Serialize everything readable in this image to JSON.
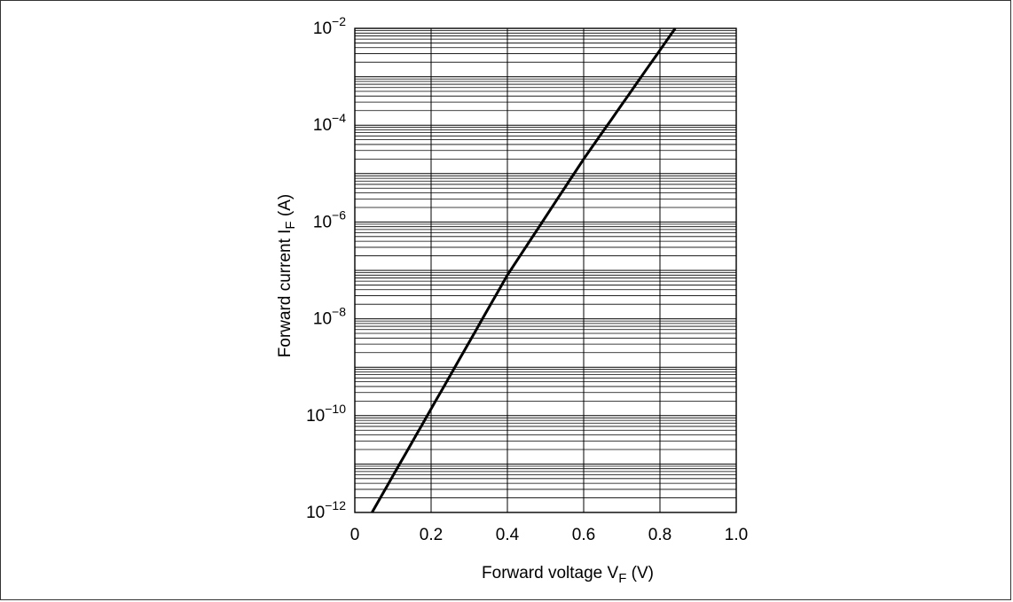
{
  "chart_data": {
    "type": "line",
    "title": "",
    "xlabel": {
      "main": "Forward voltage  V",
      "sub": "F",
      "unit": "  (V)"
    },
    "ylabel": {
      "main": "Forward current  I",
      "sub": "F",
      "unit": "  (A)"
    },
    "x_ticks": [
      "0",
      "0.2",
      "0.4",
      "0.6",
      "0.8",
      "1.0"
    ],
    "y_ticks": [
      {
        "base": "10",
        "exp": "−2"
      },
      {
        "base": "10",
        "exp": "−4"
      },
      {
        "base": "10",
        "exp": "−6"
      },
      {
        "base": "10",
        "exp": "−8"
      },
      {
        "base": "10",
        "exp": "−10"
      },
      {
        "base": "10",
        "exp": "−12"
      }
    ],
    "xlim": [
      0,
      1.0
    ],
    "ylim": [
      1e-12,
      0.01
    ],
    "yscale": "log",
    "grid": true,
    "series": [
      {
        "color": "#000000",
        "x": [
          0.045,
          0.19,
          0.4,
          0.6,
          0.84
        ],
        "y": [
          1e-12,
          1e-10,
          8e-08,
          2e-05,
          0.01
        ]
      }
    ]
  }
}
